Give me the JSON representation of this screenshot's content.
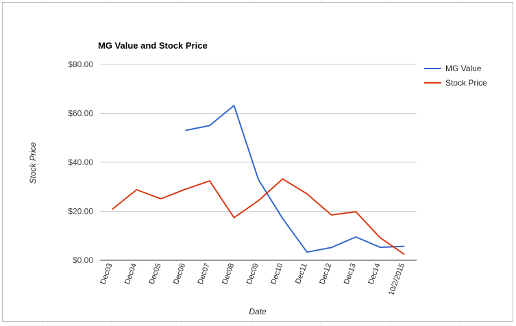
{
  "chart_data": {
    "type": "line",
    "title": "MG Value and Stock Price",
    "xlabel": "Date",
    "ylabel": "Stock Price",
    "categories": [
      "Dec03",
      "Dec04",
      "Dec05",
      "Dec06",
      "Dec07",
      "Dec08",
      "Dec09",
      "Dec10",
      "Dec11",
      "Dec12",
      "Dec13",
      "Dec14",
      "10/2/2015"
    ],
    "series": [
      {
        "name": "MG Value",
        "color": "#3366cc",
        "values": [
          null,
          null,
          null,
          53.0,
          55.0,
          63.2,
          33.0,
          17.0,
          3.3,
          5.2,
          9.5,
          5.3,
          5.7
        ]
      },
      {
        "name": "Stock Price",
        "color": "#dc3912",
        "values": [
          20.8,
          28.8,
          25.1,
          29.0,
          32.4,
          17.4,
          24.3,
          33.2,
          27.1,
          18.5,
          19.8,
          9.2,
          2.4
        ]
      }
    ],
    "yticks": [
      "$0.00",
      "$20.00",
      "$40.00",
      "$60.00",
      "$80.00"
    ],
    "ylim": [
      0,
      80
    ],
    "grid": true,
    "legend_position": "right"
  }
}
